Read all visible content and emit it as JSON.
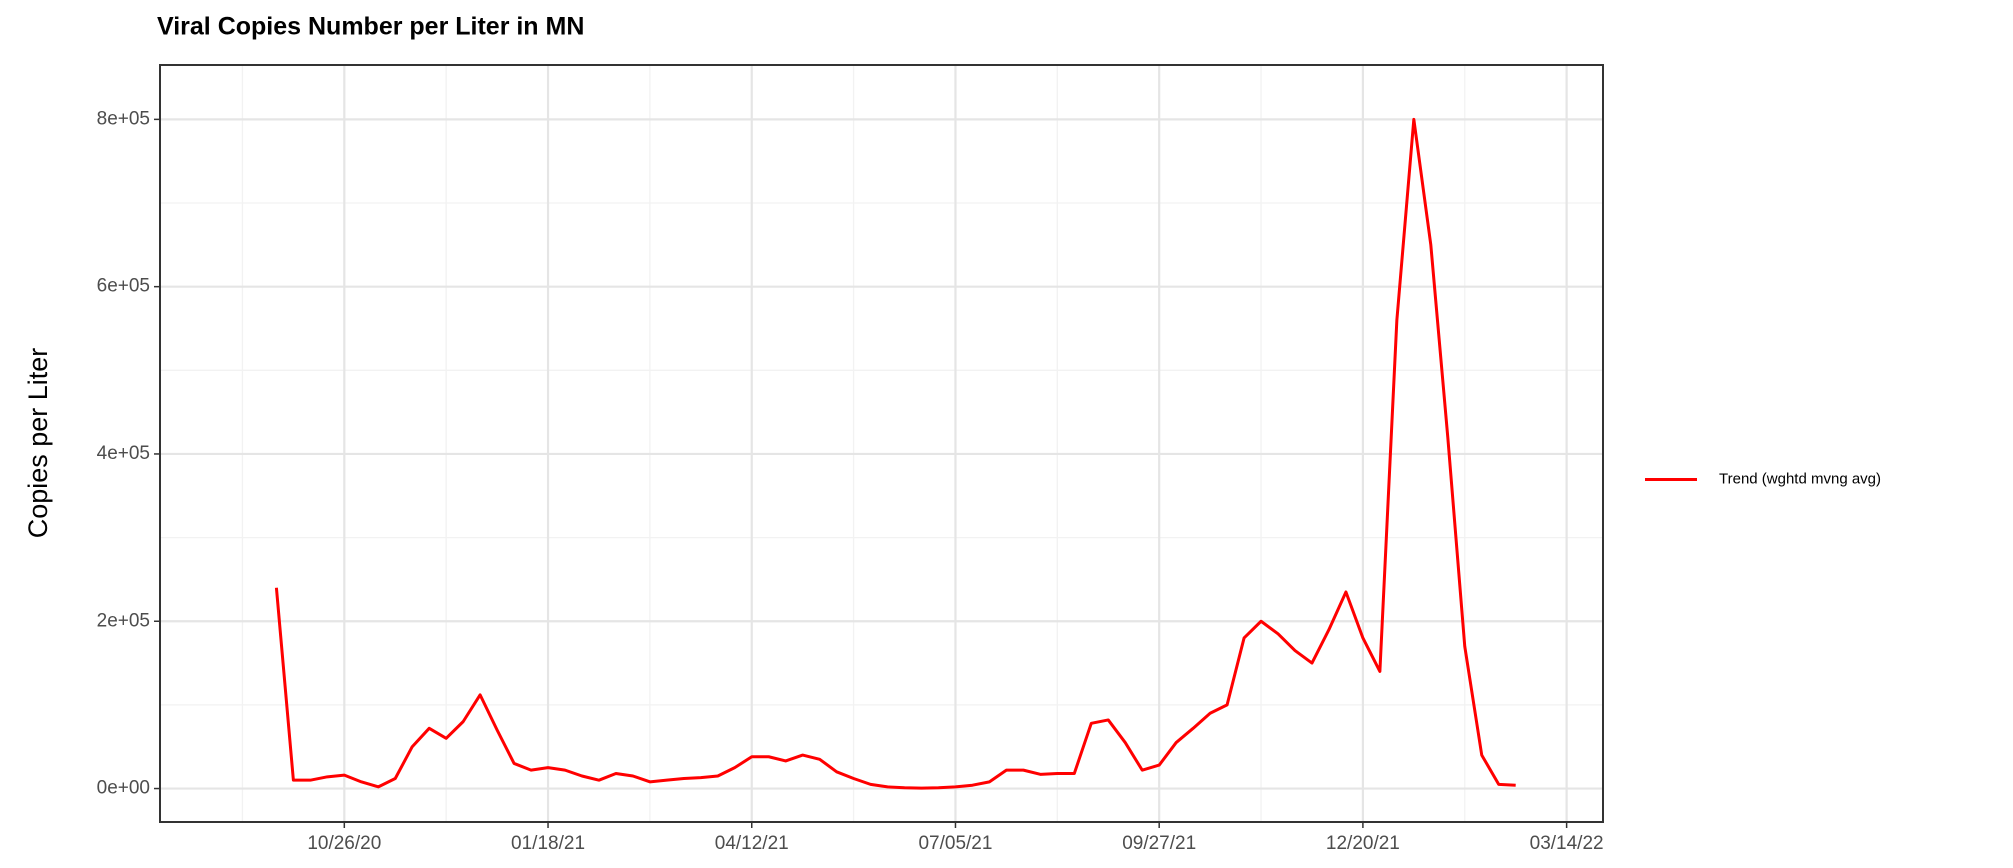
{
  "chart_data": {
    "type": "line",
    "title": "Viral Copies Number per Liter in MN",
    "y_label": "Copies per Liter",
    "x": [
      "09/28/20",
      "10/05/20",
      "10/12/20",
      "10/19/20",
      "10/26/20",
      "11/02/20",
      "11/09/20",
      "11/16/20",
      "11/23/20",
      "11/30/20",
      "12/07/20",
      "12/14/20",
      "12/21/20",
      "12/28/20",
      "01/04/21",
      "01/11/21",
      "01/18/21",
      "01/25/21",
      "02/01/21",
      "02/08/21",
      "02/15/21",
      "02/22/21",
      "03/01/21",
      "03/08/21",
      "03/15/21",
      "03/22/21",
      "03/29/21",
      "04/05/21",
      "04/12/21",
      "04/19/21",
      "04/26/21",
      "05/03/21",
      "05/10/21",
      "05/17/21",
      "05/24/21",
      "05/31/21",
      "06/07/21",
      "06/14/21",
      "06/21/21",
      "06/28/21",
      "07/05/21",
      "07/12/21",
      "07/19/21",
      "07/26/21",
      "08/02/21",
      "08/09/21",
      "08/16/21",
      "08/23/21",
      "08/30/21",
      "09/06/21",
      "09/13/21",
      "09/20/21",
      "09/27/21",
      "10/04/21",
      "10/11/21",
      "10/18/21",
      "10/25/21",
      "11/01/21",
      "11/08/21",
      "11/15/21",
      "11/22/21",
      "11/29/21",
      "12/06/21",
      "12/13/21",
      "12/20/21",
      "12/27/21",
      "01/03/22",
      "01/10/22",
      "01/17/22",
      "01/24/22",
      "01/31/22",
      "02/07/22",
      "02/14/22",
      "02/21/22"
    ],
    "series": [
      {
        "name": "Trend (wghtd mvng avg)",
        "color": "#ff0000",
        "values": [
          240000,
          10000,
          10000,
          14000,
          16000,
          8000,
          2000,
          12000,
          50000,
          72000,
          60000,
          80000,
          112000,
          70000,
          30000,
          22000,
          25000,
          22000,
          15000,
          10000,
          18000,
          15000,
          8000,
          10000,
          12000,
          13000,
          15000,
          25000,
          38000,
          38000,
          33000,
          40000,
          35000,
          20000,
          12000,
          5000,
          2000,
          1000,
          500,
          1000,
          2000,
          4000,
          8000,
          22000,
          22000,
          17000,
          18000,
          18000,
          78000,
          82000,
          55000,
          22000,
          28000,
          55000,
          72000,
          90000,
          100000,
          180000,
          200000,
          185000,
          165000,
          150000,
          190000,
          235000,
          180000,
          140000,
          560000,
          800000,
          650000,
          420000,
          170000,
          40000,
          5000,
          4000
        ]
      }
    ],
    "xlim": [
      "08/11/20",
      "03/29/22"
    ],
    "xticks": [
      "10/26/20",
      "01/18/21",
      "04/12/21",
      "07/05/21",
      "09/27/21",
      "12/20/21",
      "03/14/22"
    ],
    "ylim": [
      -40000,
      865000
    ],
    "yticks": [
      {
        "value": 0,
        "label": "0e+00"
      },
      {
        "value": 200000,
        "label": "2e+05"
      },
      {
        "value": 400000,
        "label": "4e+05"
      },
      {
        "value": 600000,
        "label": "6e+05"
      },
      {
        "value": 800000,
        "label": "8e+05"
      }
    ],
    "grid": true,
    "legend": "right"
  }
}
